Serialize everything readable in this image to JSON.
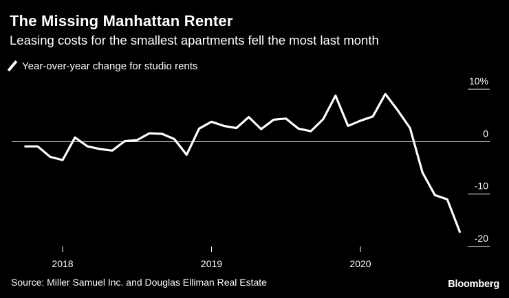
{
  "chart_data": {
    "type": "line",
    "title": "The Missing Manhattan Renter",
    "subtitle": "Leasing costs for the smallest apartments fell the most last month",
    "legend": [
      "Year-over-year change for studio rents"
    ],
    "source": "Source: Miller Samuel Inc. and Douglas Elliman Real Estate",
    "brand": "Bloomberg",
    "ylim": [
      -20,
      10
    ],
    "y_ticks": [
      10,
      0,
      -10,
      -20
    ],
    "y_tick_labels": [
      "10%",
      "0",
      "-10",
      "-20"
    ],
    "x_tick_labels": [
      "2018",
      "2019",
      "2020"
    ],
    "x_tick_positions": [
      2018,
      2019,
      2020
    ],
    "series": [
      {
        "name": "Year-over-year change for studio rents",
        "x": [
          2017.75,
          2017.833,
          2017.917,
          2018.0,
          2018.083,
          2018.167,
          2018.25,
          2018.333,
          2018.417,
          2018.5,
          2018.583,
          2018.667,
          2018.75,
          2018.833,
          2018.917,
          2019.0,
          2019.083,
          2019.167,
          2019.25,
          2019.333,
          2019.417,
          2019.5,
          2019.583,
          2019.667,
          2019.75,
          2019.833,
          2019.917,
          2020.0,
          2020.083,
          2020.167,
          2020.25,
          2020.333,
          2020.417,
          2020.5,
          2020.583,
          2020.667
        ],
        "values": [
          -0.9,
          -0.9,
          -2.9,
          -3.5,
          0.8,
          -0.9,
          -1.4,
          -1.7,
          0.1,
          0.3,
          1.6,
          1.5,
          0.5,
          -2.5,
          2.5,
          3.8,
          3.0,
          2.6,
          4.7,
          2.4,
          4.2,
          4.4,
          2.5,
          2.0,
          4.3,
          8.8,
          3.0,
          4.0,
          4.8,
          9.1,
          6.0,
          2.6,
          -5.9,
          -10.2,
          -11.0,
          -17.2
        ]
      }
    ]
  }
}
